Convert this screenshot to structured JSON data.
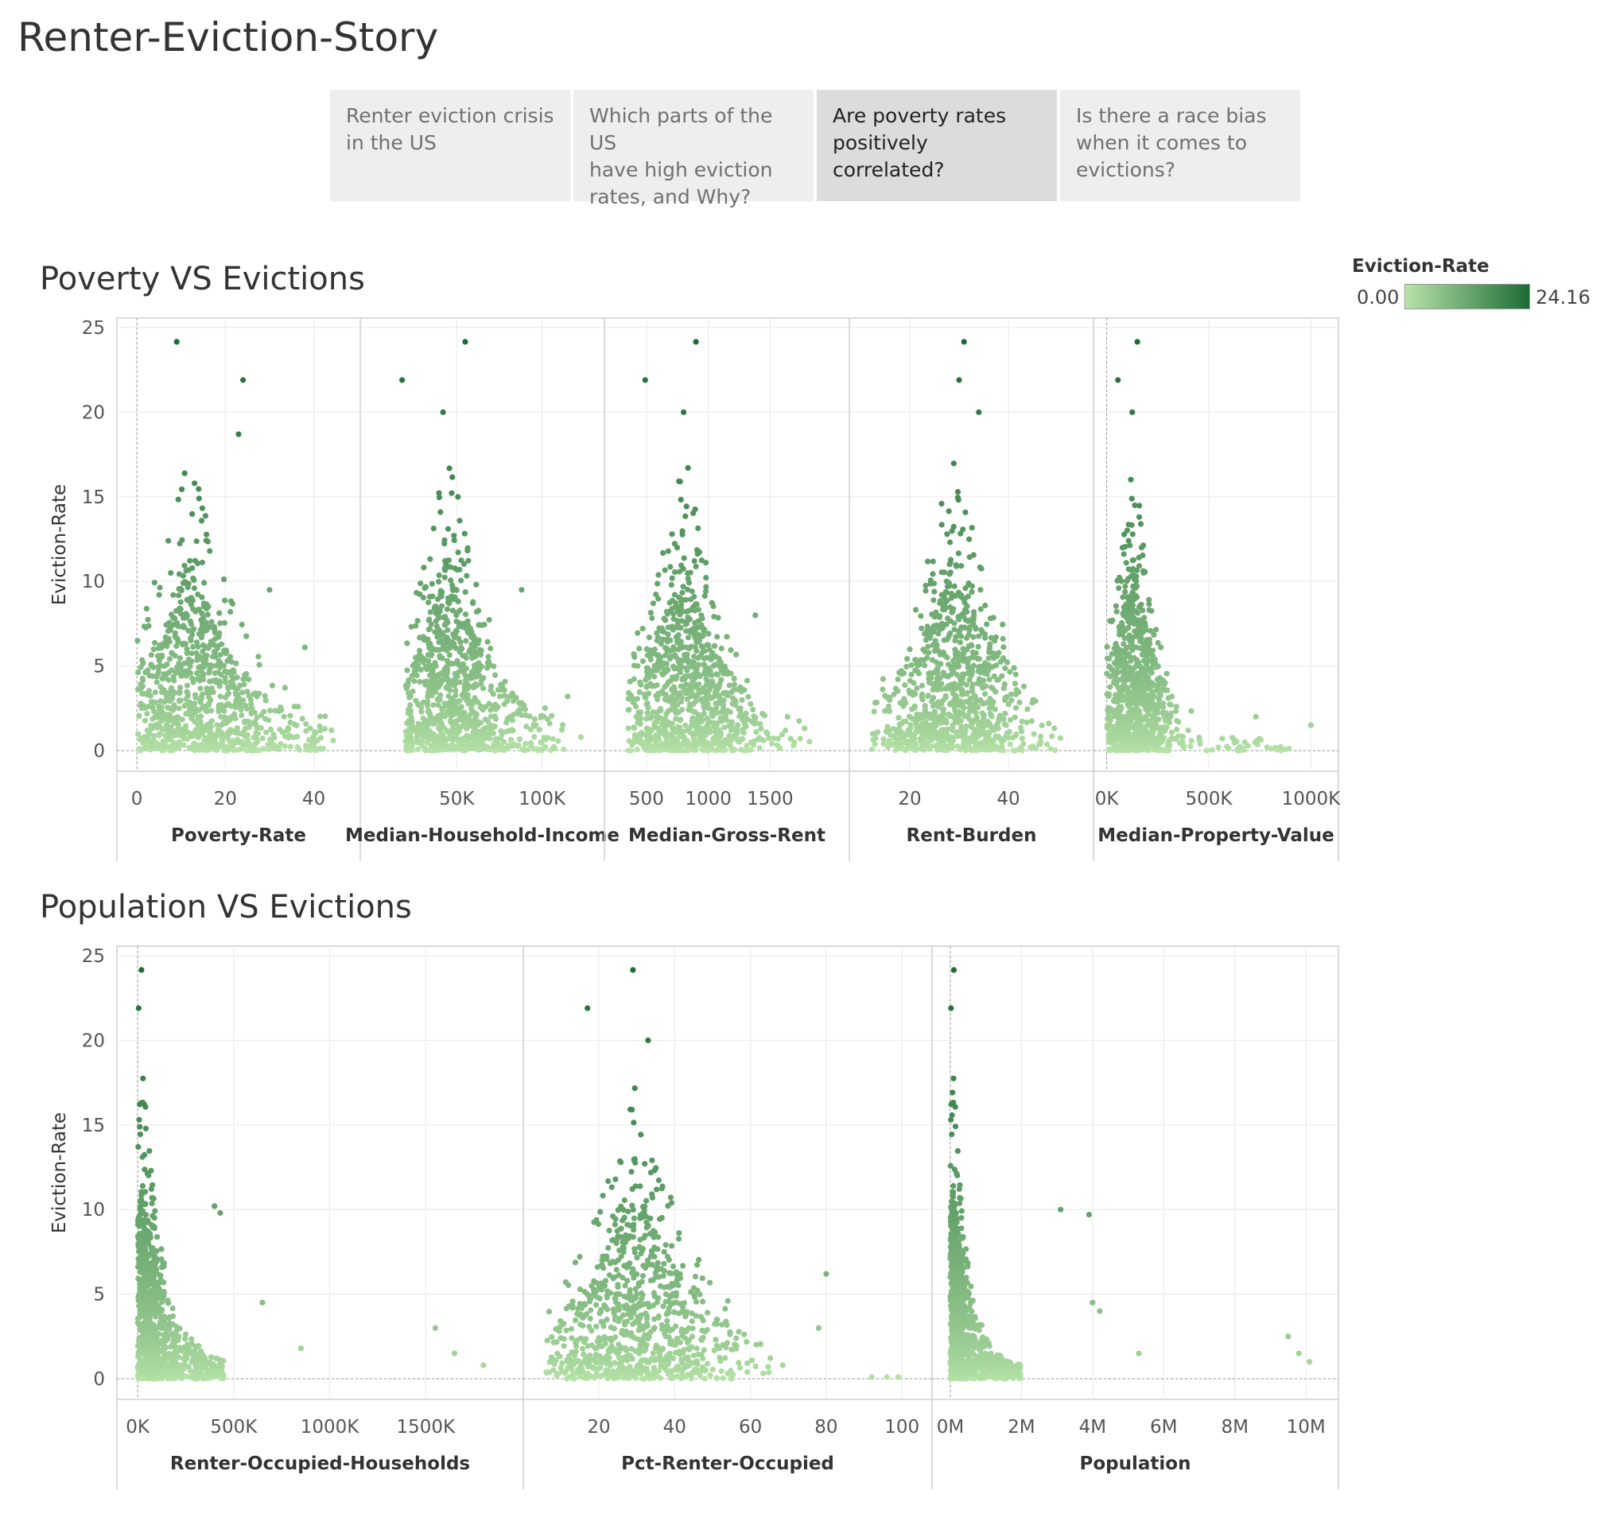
{
  "story_title": "Renter-Eviction-Story",
  "tabs": [
    {
      "label": "Renter eviction crisis\nin the US",
      "active": false
    },
    {
      "label": "Which parts of the US\nhave high eviction\nrates,  and Why?",
      "active": false
    },
    {
      "label": "Are poverty rates\npositively correlated?",
      "active": true
    },
    {
      "label": "Is there a race bias\nwhen it comes to\nevictions?",
      "active": false
    }
  ],
  "legend": {
    "title": "Eviction-Rate",
    "min_label": "0.00",
    "max_label": "24.16",
    "min": 0,
    "max": 24.16,
    "color_low": "#b7e3a8",
    "color_high": "#1d6b36"
  },
  "colors": {
    "grid": "#ececec",
    "axis": "#cfcfcf",
    "zero_line": "#9a9a9a"
  },
  "sections": [
    {
      "title": "Poverty VS Evictions",
      "ylabel": "Eviction-Rate",
      "yticks": [
        25,
        20,
        15,
        10,
        5,
        0
      ],
      "ylim": [
        0,
        25
      ]
    },
    {
      "title": "Population VS Evictions",
      "ylabel": "Eviction-Rate",
      "yticks": [
        25,
        20,
        15,
        10,
        5,
        0
      ],
      "ylim": [
        0,
        25
      ]
    }
  ],
  "chart_data": [
    {
      "type": "scatter",
      "section": 0,
      "xlabel": "Poverty-Rate",
      "xlim": [
        -2,
        48
      ],
      "xticks": [
        0,
        20,
        40
      ],
      "xtick_labels": [
        "0",
        "20",
        "40"
      ],
      "dist": {
        "mode": 12,
        "spread": 8,
        "decay": 0.55,
        "min": 0,
        "max": 48
      },
      "outliers": [
        [
          9,
          24.16
        ],
        [
          24,
          21.9
        ],
        [
          23,
          18.7
        ],
        [
          30,
          9.5
        ],
        [
          44,
          1.2
        ],
        [
          38,
          6.1
        ]
      ]
    },
    {
      "type": "scatter",
      "section": 0,
      "xlabel": "Median-Household-Income",
      "xlim": [
        0,
        130000
      ],
      "xticks": [
        50000,
        100000
      ],
      "xtick_labels": [
        "50K",
        "100K"
      ],
      "dist": {
        "mode": 45000,
        "spread": 16000,
        "decay": 0.5,
        "min": 20000,
        "max": 125000
      },
      "outliers": [
        [
          55000,
          24.16
        ],
        [
          18000,
          21.9
        ],
        [
          42000,
          20.0
        ],
        [
          88000,
          9.5
        ],
        [
          115000,
          3.2
        ]
      ]
    },
    {
      "type": "scatter",
      "section": 0,
      "xlabel": "Median-Gross-Rent",
      "xlim": [
        250,
        2050
      ],
      "xticks": [
        500,
        1000,
        1500
      ],
      "xtick_labels": [
        "500",
        "1000",
        "1500"
      ],
      "dist": {
        "mode": 800,
        "spread": 220,
        "decay": 0.5,
        "min": 350,
        "max": 1850
      },
      "outliers": [
        [
          900,
          24.16
        ],
        [
          490,
          21.9
        ],
        [
          800,
          20.0
        ],
        [
          1380,
          8.0
        ],
        [
          1640,
          2.0
        ]
      ]
    },
    {
      "type": "scatter",
      "section": 0,
      "xlabel": "Rent-Burden",
      "xlim": [
        10,
        55
      ],
      "xticks": [
        20,
        40
      ],
      "xtick_labels": [
        "20",
        "40"
      ],
      "dist": {
        "mode": 29,
        "spread": 6,
        "decay": 0.45,
        "min": 12,
        "max": 51
      },
      "outliers": [
        [
          31,
          24.16
        ],
        [
          30,
          21.9
        ],
        [
          34,
          20.0
        ],
        [
          45,
          3.0
        ],
        [
          13,
          1.0
        ]
      ]
    },
    {
      "type": "scatter",
      "section": 0,
      "xlabel": "Median-Property-Value",
      "xlim": [
        -10000,
        1080000
      ],
      "xticks": [
        0,
        500000,
        1000000
      ],
      "xtick_labels": [
        "0K",
        "500K",
        "1000K"
      ],
      "dist": {
        "mode": 130000,
        "spread": 70000,
        "decay": 0.45,
        "min": 0,
        "max": 1000000
      },
      "outliers": [
        [
          150000,
          24.16
        ],
        [
          55000,
          21.9
        ],
        [
          125000,
          20.0
        ],
        [
          730000,
          2.0
        ],
        [
          1000000,
          1.5
        ]
      ]
    },
    {
      "type": "scatter",
      "section": 1,
      "xlabel": "Renter-Occupied-Households",
      "xlim": [
        -50000,
        1950000
      ],
      "xticks": [
        0,
        500000,
        1000000,
        1500000
      ],
      "xtick_labels": [
        "0K",
        "500K",
        "1000K",
        "1500K"
      ],
      "dist": {
        "mode": 25000,
        "spread": 60000,
        "decay": 0.4,
        "min": 0,
        "max": 500000
      },
      "outliers": [
        [
          20000,
          24.16
        ],
        [
          5000,
          21.9
        ],
        [
          400000,
          10.2
        ],
        [
          430000,
          9.8
        ],
        [
          1550000,
          3.0
        ],
        [
          1650000,
          1.5
        ],
        [
          1800000,
          0.8
        ],
        [
          850000,
          1.8
        ],
        [
          650000,
          4.5
        ]
      ]
    },
    {
      "type": "scatter",
      "section": 1,
      "xlabel": "Pct-Renter-Occupied",
      "xlim": [
        3,
        105
      ],
      "xticks": [
        20,
        40,
        60,
        80,
        100
      ],
      "xtick_labels": [
        "20",
        "40",
        "60",
        "80",
        "100"
      ],
      "dist": {
        "mode": 30,
        "spread": 10,
        "decay": 0.5,
        "min": 6,
        "max": 72
      },
      "outliers": [
        [
          29,
          24.16
        ],
        [
          17,
          21.9
        ],
        [
          33,
          20.0
        ],
        [
          80,
          6.2
        ],
        [
          78,
          3.0
        ],
        [
          96,
          0.1
        ],
        [
          99,
          0.1
        ],
        [
          92,
          0.1
        ]
      ]
    },
    {
      "type": "scatter",
      "section": 1,
      "xlabel": "Population",
      "xlim": [
        -200000,
        10600000
      ],
      "xticks": [
        0,
        2000000,
        4000000,
        6000000,
        8000000,
        10000000
      ],
      "xtick_labels": [
        "0M",
        "2M",
        "4M",
        "6M",
        "8M",
        "10M"
      ],
      "dist": {
        "mode": 80000,
        "spread": 220000,
        "decay": 0.4,
        "min": 0,
        "max": 2200000
      },
      "outliers": [
        [
          100000,
          24.16
        ],
        [
          20000,
          21.9
        ],
        [
          3100000,
          10.0
        ],
        [
          3900000,
          9.7
        ],
        [
          4000000,
          4.5
        ],
        [
          4200000,
          4.0
        ],
        [
          5300000,
          1.5
        ],
        [
          9500000,
          2.5
        ],
        [
          9800000,
          1.5
        ],
        [
          10100000,
          1.0
        ]
      ]
    }
  ]
}
